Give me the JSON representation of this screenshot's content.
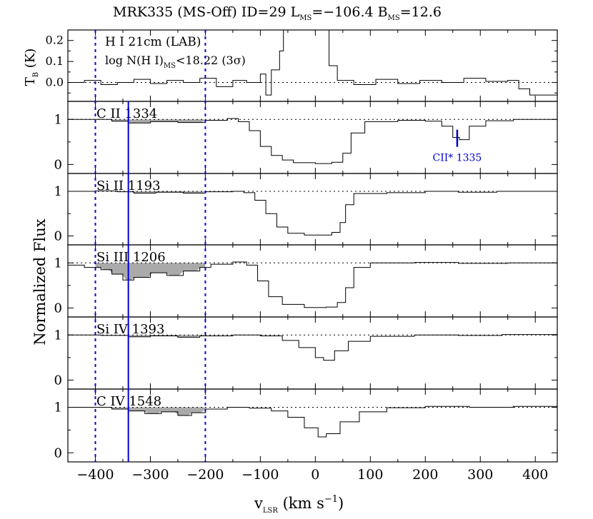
{
  "chart_data": {
    "type": "line",
    "title": {
      "main": "MRK335 (MS-Off) ID=29 L",
      "sub1": "MS",
      "mid": "=−106.4 B",
      "sub2": "MS",
      "end": "=12.6"
    },
    "xlabel": {
      "main": "v",
      "sub": "LSR",
      "units": " (km s",
      "exp": "−1",
      "close": ")"
    },
    "ylabel_flux": "Normalized Flux",
    "ylabel_tb": {
      "main": "T",
      "sub": "B",
      "units": " (K)"
    },
    "xlim": [
      -450,
      440
    ],
    "xticks": [
      -400,
      -300,
      -200,
      -100,
      0,
      100,
      200,
      300,
      400
    ],
    "xtick_labels": [
      "−400",
      "−300",
      "−200",
      "−100",
      "0",
      "100",
      "200",
      "300",
      "400"
    ],
    "integration_window": [
      -400,
      -200
    ],
    "ms_velocity": -340,
    "colors": {
      "window_lines": "#0000dd",
      "ms_line": "#0000dd",
      "fill": "#aaaaaa",
      "annotation": "#0000cc"
    },
    "hi_panel": {
      "label": "H I 21cm (LAB)",
      "limit": {
        "pre": "log N(H I)",
        "sub": "MS",
        "post": "<18.22 (3σ)"
      },
      "ylim": [
        -0.09,
        0.25
      ],
      "yticks": [
        0.0,
        0.1,
        0.2
      ],
      "ytick_labels": [
        "0.0",
        "0.1",
        "0.2"
      ],
      "series": [
        {
          "x": -450,
          "y": 0.0
        },
        {
          "x": -420,
          "y": 0.01
        },
        {
          "x": -390,
          "y": -0.01
        },
        {
          "x": -360,
          "y": 0.0
        },
        {
          "x": -330,
          "y": 0.015
        },
        {
          "x": -300,
          "y": -0.005
        },
        {
          "x": -270,
          "y": 0.01
        },
        {
          "x": -240,
          "y": 0.0
        },
        {
          "x": -210,
          "y": 0.02
        },
        {
          "x": -180,
          "y": -0.02
        },
        {
          "x": -150,
          "y": 0.01
        },
        {
          "x": -125,
          "y": 0.0
        },
        {
          "x": -100,
          "y": 0.04
        },
        {
          "x": -90,
          "y": -0.06
        },
        {
          "x": -80,
          "y": 0.06
        },
        {
          "x": -65,
          "y": 0.15
        },
        {
          "x": -58,
          "y": 0.25
        },
        {
          "x": 20,
          "y": 0.25
        },
        {
          "x": 25,
          "y": 0.08
        },
        {
          "x": 40,
          "y": 0.01
        },
        {
          "x": 70,
          "y": -0.01
        },
        {
          "x": 110,
          "y": 0.015
        },
        {
          "x": 150,
          "y": -0.005
        },
        {
          "x": 190,
          "y": 0.01
        },
        {
          "x": 230,
          "y": 0.0
        },
        {
          "x": 270,
          "y": 0.02
        },
        {
          "x": 310,
          "y": 0.005
        },
        {
          "x": 350,
          "y": 0.01
        },
        {
          "x": 370,
          "y": -0.03
        },
        {
          "x": 390,
          "y": -0.06
        },
        {
          "x": 440,
          "y": -0.09
        }
      ]
    },
    "panels": [
      {
        "label": "C II 1334",
        "ylim": [
          -0.2,
          1.4
        ],
        "yticks": [
          0,
          1
        ],
        "ytick_labels": [
          "0",
          "1"
        ],
        "series": [
          {
            "x": -450,
            "y": 1.0
          },
          {
            "x": -400,
            "y": 1.0
          },
          {
            "x": -370,
            "y": 0.96
          },
          {
            "x": -340,
            "y": 0.92
          },
          {
            "x": -300,
            "y": 0.95
          },
          {
            "x": -250,
            "y": 0.93
          },
          {
            "x": -200,
            "y": 0.98
          },
          {
            "x": -160,
            "y": 1.02
          },
          {
            "x": -140,
            "y": 0.95
          },
          {
            "x": -120,
            "y": 0.75
          },
          {
            "x": -100,
            "y": 0.4
          },
          {
            "x": -80,
            "y": 0.2
          },
          {
            "x": -60,
            "y": 0.1
          },
          {
            "x": -40,
            "y": 0.04
          },
          {
            "x": 0,
            "y": 0.02
          },
          {
            "x": 30,
            "y": 0.05
          },
          {
            "x": 50,
            "y": 0.25
          },
          {
            "x": 65,
            "y": 0.7
          },
          {
            "x": 90,
            "y": 0.95
          },
          {
            "x": 150,
            "y": 0.98
          },
          {
            "x": 200,
            "y": 0.96
          },
          {
            "x": 230,
            "y": 0.85
          },
          {
            "x": 250,
            "y": 0.6
          },
          {
            "x": 262,
            "y": 0.55
          },
          {
            "x": 280,
            "y": 0.85
          },
          {
            "x": 310,
            "y": 0.97
          },
          {
            "x": 360,
            "y": 1.0
          },
          {
            "x": 440,
            "y": 1.02
          }
        ],
        "annotation": {
          "text": "CII* 1335",
          "x": 258
        }
      },
      {
        "label": "Si II 1193",
        "ylim": [
          -0.2,
          1.4
        ],
        "yticks": [
          0,
          1
        ],
        "ytick_labels": [
          "0",
          "1"
        ],
        "series": [
          {
            "x": -450,
            "y": 1.0
          },
          {
            "x": -400,
            "y": 1.01
          },
          {
            "x": -360,
            "y": 0.99
          },
          {
            "x": -330,
            "y": 0.96
          },
          {
            "x": -290,
            "y": 0.98
          },
          {
            "x": -240,
            "y": 0.96
          },
          {
            "x": -200,
            "y": 0.99
          },
          {
            "x": -150,
            "y": 1.0
          },
          {
            "x": -130,
            "y": 0.97
          },
          {
            "x": -110,
            "y": 0.8
          },
          {
            "x": -90,
            "y": 0.5
          },
          {
            "x": -70,
            "y": 0.2
          },
          {
            "x": -50,
            "y": 0.06
          },
          {
            "x": -20,
            "y": 0.02
          },
          {
            "x": 10,
            "y": 0.02
          },
          {
            "x": 30,
            "y": 0.08
          },
          {
            "x": 45,
            "y": 0.3
          },
          {
            "x": 55,
            "y": 0.7
          },
          {
            "x": 70,
            "y": 0.95
          },
          {
            "x": 130,
            "y": 0.97
          },
          {
            "x": 200,
            "y": 1.0
          },
          {
            "x": 260,
            "y": 0.98
          },
          {
            "x": 330,
            "y": 1.0
          },
          {
            "x": 440,
            "y": 1.0
          }
        ]
      },
      {
        "label": "Si III 1206",
        "ylim": [
          -0.2,
          1.4
        ],
        "yticks": [
          0,
          1
        ],
        "ytick_labels": [
          "0",
          "1"
        ],
        "series": [
          {
            "x": -450,
            "y": 0.95
          },
          {
            "x": -420,
            "y": 0.9
          },
          {
            "x": -390,
            "y": 0.85
          },
          {
            "x": -370,
            "y": 0.75
          },
          {
            "x": -350,
            "y": 0.62
          },
          {
            "x": -330,
            "y": 0.68
          },
          {
            "x": -300,
            "y": 0.78
          },
          {
            "x": -270,
            "y": 0.72
          },
          {
            "x": -240,
            "y": 0.82
          },
          {
            "x": -210,
            "y": 0.9
          },
          {
            "x": -190,
            "y": 0.97
          },
          {
            "x": -150,
            "y": 1.02
          },
          {
            "x": -125,
            "y": 0.95
          },
          {
            "x": -105,
            "y": 0.6
          },
          {
            "x": -85,
            "y": 0.25
          },
          {
            "x": -60,
            "y": 0.08
          },
          {
            "x": -20,
            "y": 0.01
          },
          {
            "x": 20,
            "y": 0.02
          },
          {
            "x": 40,
            "y": 0.12
          },
          {
            "x": 55,
            "y": 0.45
          },
          {
            "x": 70,
            "y": 0.9
          },
          {
            "x": 100,
            "y": 1.0
          },
          {
            "x": 180,
            "y": 1.01
          },
          {
            "x": 260,
            "y": 0.99
          },
          {
            "x": 350,
            "y": 1.0
          },
          {
            "x": 440,
            "y": 1.01
          }
        ]
      },
      {
        "label": "Si IV 1393",
        "ylim": [
          -0.2,
          1.4
        ],
        "yticks": [
          0,
          1
        ],
        "ytick_labels": [
          "0",
          "1"
        ],
        "series": [
          {
            "x": -450,
            "y": 1.0
          },
          {
            "x": -390,
            "y": 0.99
          },
          {
            "x": -340,
            "y": 0.96
          },
          {
            "x": -300,
            "y": 0.98
          },
          {
            "x": -250,
            "y": 0.95
          },
          {
            "x": -210,
            "y": 0.98
          },
          {
            "x": -150,
            "y": 1.0
          },
          {
            "x": -100,
            "y": 0.98
          },
          {
            "x": -60,
            "y": 0.88
          },
          {
            "x": -30,
            "y": 0.72
          },
          {
            "x": 0,
            "y": 0.5
          },
          {
            "x": 15,
            "y": 0.44
          },
          {
            "x": 35,
            "y": 0.65
          },
          {
            "x": 60,
            "y": 0.86
          },
          {
            "x": 100,
            "y": 0.97
          },
          {
            "x": 180,
            "y": 1.0
          },
          {
            "x": 260,
            "y": 0.99
          },
          {
            "x": 340,
            "y": 1.01
          },
          {
            "x": 440,
            "y": 1.0
          }
        ]
      },
      {
        "label": "C IV 1548",
        "ylim": [
          -0.2,
          1.4
        ],
        "yticks": [
          0,
          1
        ],
        "ytick_labels": [
          "0",
          "1"
        ],
        "series": [
          {
            "x": -450,
            "y": 1.0
          },
          {
            "x": -400,
            "y": 1.0
          },
          {
            "x": -370,
            "y": 0.96
          },
          {
            "x": -340,
            "y": 0.92
          },
          {
            "x": -310,
            "y": 0.86
          },
          {
            "x": -280,
            "y": 0.9
          },
          {
            "x": -250,
            "y": 0.82
          },
          {
            "x": -225,
            "y": 0.88
          },
          {
            "x": -200,
            "y": 0.96
          },
          {
            "x": -160,
            "y": 1.0
          },
          {
            "x": -120,
            "y": 0.98
          },
          {
            "x": -80,
            "y": 0.92
          },
          {
            "x": -50,
            "y": 0.78
          },
          {
            "x": -20,
            "y": 0.55
          },
          {
            "x": 5,
            "y": 0.35
          },
          {
            "x": 20,
            "y": 0.42
          },
          {
            "x": 45,
            "y": 0.68
          },
          {
            "x": 80,
            "y": 0.9
          },
          {
            "x": 130,
            "y": 0.99
          },
          {
            "x": 200,
            "y": 1.02
          },
          {
            "x": 280,
            "y": 1.0
          },
          {
            "x": 360,
            "y": 1.02
          },
          {
            "x": 440,
            "y": 1.0
          }
        ]
      }
    ]
  }
}
